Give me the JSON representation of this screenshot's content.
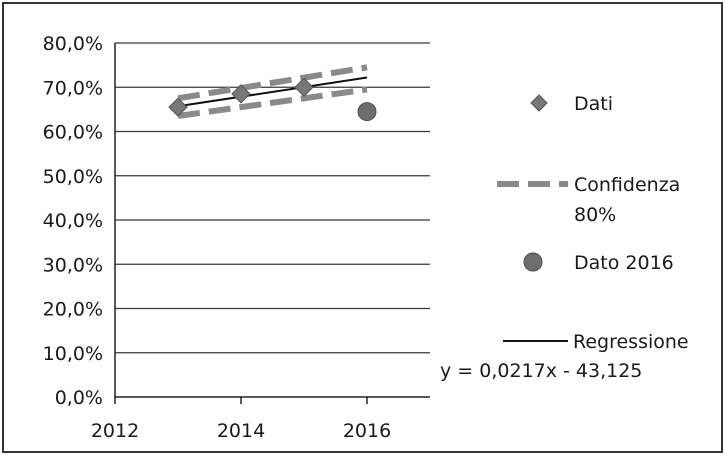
{
  "chart_data": {
    "type": "scatter",
    "xlim": [
      2012,
      2017
    ],
    "ylim": [
      0,
      0.8
    ],
    "x_ticks": [
      {
        "value": 2012,
        "label": "2012"
      },
      {
        "value": 2014,
        "label": "2014"
      },
      {
        "value": 2016,
        "label": "2016"
      }
    ],
    "y_ticks": [
      {
        "value": 0.0,
        "label": "0,0%"
      },
      {
        "value": 0.1,
        "label": "10,0%"
      },
      {
        "value": 0.2,
        "label": "20,0%"
      },
      {
        "value": 0.3,
        "label": "30,0%"
      },
      {
        "value": 0.4,
        "label": "40,0%"
      },
      {
        "value": 0.5,
        "label": "50,0%"
      },
      {
        "value": 0.6,
        "label": "60,0%"
      },
      {
        "value": 0.7,
        "label": "70,0%"
      },
      {
        "value": 0.8,
        "label": "80,0%"
      }
    ],
    "grid": "horizontal",
    "legend_position": "right",
    "series": [
      {
        "name": "Dati",
        "kind": "markers",
        "marker": "diamond",
        "color": "#777777",
        "points": [
          {
            "x": 2013,
            "y": 0.655
          },
          {
            "x": 2014,
            "y": 0.685
          },
          {
            "x": 2015,
            "y": 0.7
          }
        ]
      },
      {
        "name": "Confidenza 80%",
        "kind": "dashed-band",
        "color": "#8a8a8a",
        "upper": [
          {
            "x": 2013,
            "y": 0.675
          },
          {
            "x": 2016,
            "y": 0.745
          }
        ],
        "lower": [
          {
            "x": 2013,
            "y": 0.635
          },
          {
            "x": 2016,
            "y": 0.695
          }
        ]
      },
      {
        "name": "Dato 2016",
        "kind": "markers",
        "marker": "circle",
        "color": "#6e6e6e",
        "points": [
          {
            "x": 2016,
            "y": 0.645
          }
        ]
      },
      {
        "name": "Regressione",
        "kind": "line",
        "color": "#111111",
        "points": [
          {
            "x": 2013,
            "y": 0.657
          },
          {
            "x": 2016,
            "y": 0.722
          }
        ]
      }
    ],
    "annotations": [
      {
        "text": "y = 0,0217x - 43,125"
      }
    ]
  }
}
